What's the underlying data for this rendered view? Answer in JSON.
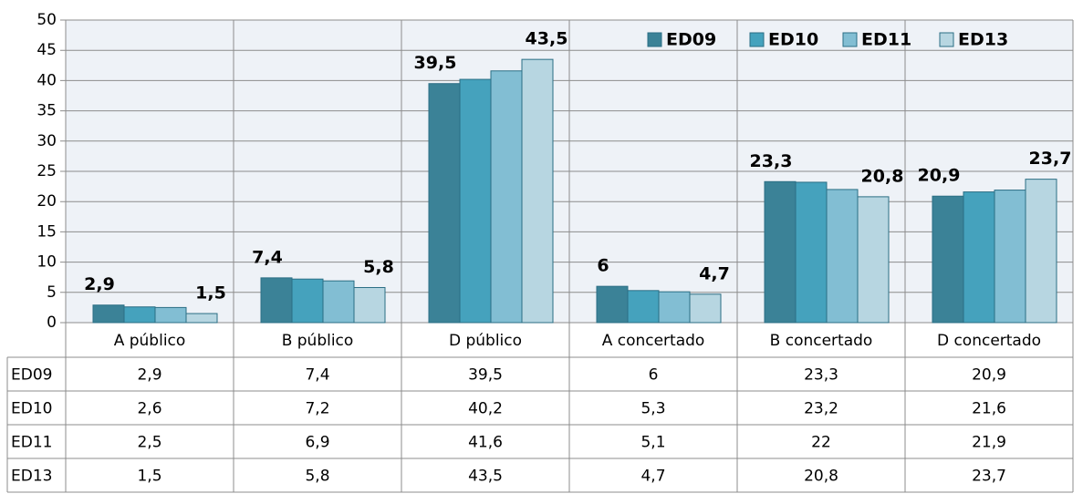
{
  "chart_data": {
    "type": "bar",
    "categories": [
      "A público",
      "B público",
      "D público",
      "A concertado",
      "B concertado",
      "D concertado"
    ],
    "series": [
      {
        "name": "ED09",
        "color": "#3b8297",
        "show_labels": true,
        "values": [
          2.9,
          7.4,
          39.5,
          6,
          23.3,
          20.9
        ],
        "value_labels": [
          "2,9",
          "7,4",
          "39,5",
          "6",
          "23,3",
          "20,9"
        ]
      },
      {
        "name": "ED10",
        "color": "#45a2bd",
        "show_labels": false,
        "values": [
          2.6,
          7.2,
          40.2,
          5.3,
          23.2,
          21.6
        ],
        "value_labels": [
          "2,6",
          "7,2",
          "40,2",
          "5,3",
          "23,2",
          "21,6"
        ]
      },
      {
        "name": "ED11",
        "color": "#82bed3",
        "show_labels": false,
        "values": [
          2.5,
          6.9,
          41.6,
          5.1,
          22,
          21.9
        ],
        "value_labels": [
          "2,5",
          "6,9",
          "41,6",
          "5,1",
          "22",
          "21,9"
        ]
      },
      {
        "name": "ED13",
        "color": "#b7d6e1",
        "show_labels": true,
        "values": [
          1.5,
          5.8,
          43.5,
          4.7,
          20.8,
          23.7
        ],
        "value_labels": [
          "1,5",
          "5,8",
          "43,5",
          "4,7",
          "20,8",
          "23,7"
        ]
      }
    ],
    "ylim": [
      0,
      50
    ],
    "yticks": [
      0,
      5,
      10,
      15,
      20,
      25,
      30,
      35,
      40,
      45,
      50
    ],
    "grid": true,
    "legend": "top-right",
    "data_table": true
  }
}
